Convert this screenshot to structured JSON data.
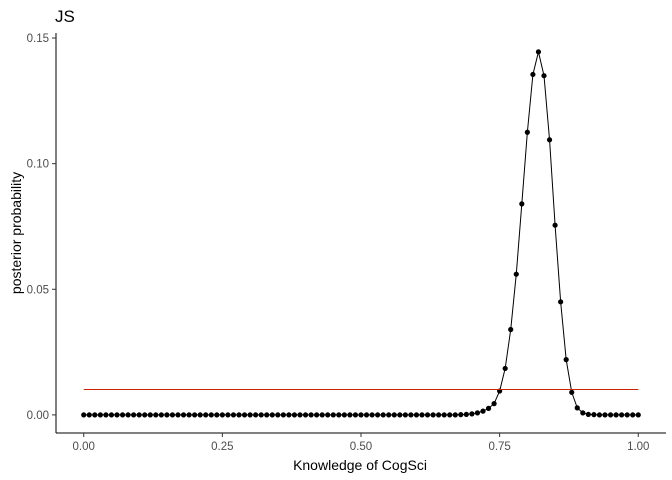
{
  "chart_data": {
    "type": "line",
    "title": "JS",
    "xlabel": "Knowledge of CogSci",
    "ylabel": "posterior probability",
    "xlim": [
      -0.05,
      1.05
    ],
    "ylim": [
      -0.0072,
      0.152
    ],
    "x_ticks": [
      0.0,
      0.25,
      0.5,
      0.75,
      1.0
    ],
    "x_tick_labels": [
      "0.00",
      "0.25",
      "0.50",
      "0.75",
      "1.00"
    ],
    "y_ticks": [
      0.0,
      0.05,
      0.1,
      0.15
    ],
    "y_tick_labels": [
      "0.00",
      "0.05",
      "0.10",
      "0.15"
    ],
    "grid": false,
    "series": [
      {
        "role": "posterior",
        "color": "#000000",
        "marker": "point",
        "x": [
          0.0,
          0.01,
          0.02,
          0.03,
          0.04,
          0.05,
          0.06,
          0.07,
          0.08,
          0.09,
          0.1,
          0.11,
          0.12,
          0.13,
          0.14,
          0.15,
          0.16,
          0.17,
          0.18,
          0.19,
          0.2,
          0.21,
          0.22,
          0.23,
          0.24,
          0.25,
          0.26,
          0.27,
          0.28,
          0.29,
          0.3,
          0.31,
          0.32,
          0.33,
          0.34,
          0.35,
          0.36,
          0.37,
          0.38,
          0.39,
          0.4,
          0.41,
          0.42,
          0.43,
          0.44,
          0.45,
          0.46,
          0.47,
          0.48,
          0.49,
          0.5,
          0.51,
          0.52,
          0.53,
          0.54,
          0.55,
          0.56,
          0.57,
          0.58,
          0.59,
          0.6,
          0.61,
          0.62,
          0.63,
          0.64,
          0.65,
          0.66,
          0.67,
          0.68,
          0.69,
          0.7,
          0.71,
          0.72,
          0.73,
          0.74,
          0.75,
          0.76,
          0.77,
          0.78,
          0.79,
          0.8,
          0.81,
          0.82,
          0.83,
          0.84,
          0.85,
          0.86,
          0.87,
          0.88,
          0.89,
          0.9,
          0.91,
          0.92,
          0.93,
          0.94,
          0.95,
          0.96,
          0.97,
          0.98,
          0.99,
          1.0
        ],
        "y": [
          0,
          0,
          0,
          0,
          0,
          0,
          0,
          0,
          0,
          0,
          0,
          0,
          0,
          0,
          0,
          0,
          0,
          0,
          0,
          0,
          0,
          0,
          0,
          0,
          0,
          0,
          0,
          0,
          0,
          0,
          0,
          0,
          0,
          0,
          0,
          0,
          0,
          0,
          0,
          0,
          0,
          0,
          0,
          0,
          0,
          0,
          0,
          0,
          0,
          0,
          0,
          0,
          0,
          0,
          0,
          0,
          0,
          0,
          0,
          0,
          0,
          0,
          0,
          0,
          0,
          0,
          0,
          0,
          0.0001,
          0.0002,
          0.0004,
          0.0008,
          0.0015,
          0.0026,
          0.0045,
          0.0095,
          0.0185,
          0.034,
          0.056,
          0.084,
          0.1125,
          0.1355,
          0.1445,
          0.135,
          0.1095,
          0.0755,
          0.045,
          0.022,
          0.009,
          0.0028,
          0.0008,
          0.0002,
          0.0001,
          0,
          0,
          0,
          0,
          0,
          0,
          0,
          0
        ]
      },
      {
        "role": "prior",
        "color": "#cc2200",
        "marker": "none",
        "x": [
          0.0,
          1.0
        ],
        "y": [
          0.0101,
          0.0101
        ]
      }
    ]
  }
}
